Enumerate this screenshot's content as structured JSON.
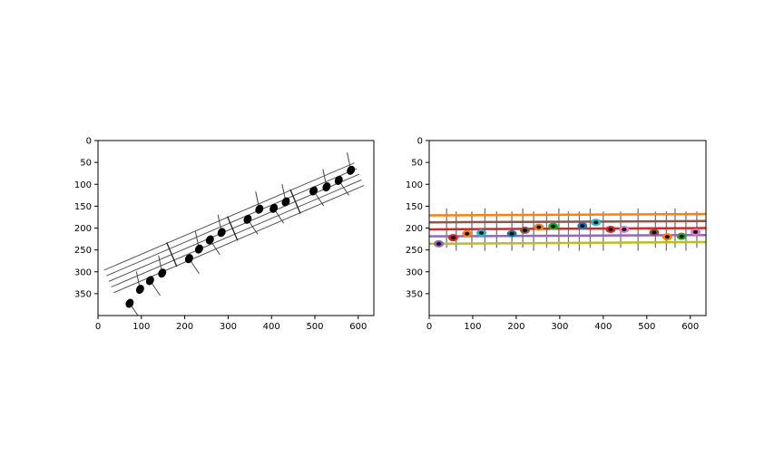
{
  "chart_data": [
    {
      "type": "scatter",
      "description_type": "image-plot",
      "title": "",
      "xlabel": "",
      "ylabel": "",
      "xlim": [
        0,
        636
      ],
      "ylim": [
        400,
        0
      ],
      "xticks": [
        "0",
        "100",
        "200",
        "300",
        "400",
        "500",
        "600"
      ],
      "yticks": [
        "0",
        "50",
        "100",
        "150",
        "200",
        "250",
        "300",
        "350"
      ],
      "staff": {
        "start": [
          25,
          322
        ],
        "end": [
          602,
          77
        ],
        "line_count": 5,
        "line_color": "#555555"
      },
      "barlines_x": [
        170,
        310,
        455
      ],
      "notes": [
        {
          "x": 73,
          "y": 372
        },
        {
          "x": 97,
          "y": 340
        },
        {
          "x": 120,
          "y": 320
        },
        {
          "x": 148,
          "y": 303
        },
        {
          "x": 210,
          "y": 270
        },
        {
          "x": 233,
          "y": 248
        },
        {
          "x": 258,
          "y": 227
        },
        {
          "x": 285,
          "y": 210
        },
        {
          "x": 345,
          "y": 180
        },
        {
          "x": 372,
          "y": 157
        },
        {
          "x": 405,
          "y": 155
        },
        {
          "x": 433,
          "y": 140
        },
        {
          "x": 497,
          "y": 115
        },
        {
          "x": 527,
          "y": 106
        },
        {
          "x": 555,
          "y": 91
        },
        {
          "x": 583,
          "y": 68
        }
      ]
    },
    {
      "type": "scatter",
      "description_type": "image-plot",
      "title": "",
      "xlabel": "",
      "ylabel": "",
      "xlim": [
        0,
        636
      ],
      "ylim": [
        400,
        0
      ],
      "xticks": [
        "0",
        "100",
        "200",
        "300",
        "400",
        "500",
        "600"
      ],
      "yticks": [
        "0",
        "50",
        "100",
        "150",
        "200",
        "250",
        "300",
        "350"
      ],
      "staff_lines": [
        {
          "y0": 171,
          "y1": 168,
          "color": "#ff7f0e"
        },
        {
          "y0": 187,
          "y1": 184,
          "color": "#8c564b"
        },
        {
          "y0": 203,
          "y1": 200,
          "color": "#d62728"
        },
        {
          "y0": 219,
          "y1": 216,
          "color": "#9467bd"
        },
        {
          "y0": 236,
          "y1": 232,
          "color": "#bcbd22"
        }
      ],
      "stems_x": [
        40,
        62,
        98,
        128,
        155,
        190,
        215,
        240,
        270,
        298,
        320,
        345,
        370,
        400,
        440,
        480,
        520,
        545,
        565,
        590,
        615
      ],
      "notes": [
        {
          "x": 22,
          "y": 236,
          "color": "#9467bd"
        },
        {
          "x": 55,
          "y": 222,
          "color": "#d62728"
        },
        {
          "x": 87,
          "y": 213,
          "color": "#ff7f0e"
        },
        {
          "x": 120,
          "y": 211,
          "color": "#17becf"
        },
        {
          "x": 190,
          "y": 213,
          "color": "#1f77b4"
        },
        {
          "x": 220,
          "y": 205,
          "color": "#8c564b"
        },
        {
          "x": 252,
          "y": 198,
          "color": "#ff7f0e"
        },
        {
          "x": 285,
          "y": 196,
          "color": "#2ca02c"
        },
        {
          "x": 352,
          "y": 195,
          "color": "#1f77b4"
        },
        {
          "x": 383,
          "y": 187,
          "color": "#17becf"
        },
        {
          "x": 417,
          "y": 203,
          "color": "#d62728"
        },
        {
          "x": 448,
          "y": 203,
          "color": "#e377c2"
        },
        {
          "x": 517,
          "y": 210,
          "color": "#8c564b"
        },
        {
          "x": 547,
          "y": 220,
          "color": "#ff7f0e"
        },
        {
          "x": 580,
          "y": 219,
          "color": "#2ca02c"
        },
        {
          "x": 612,
          "y": 209,
          "color": "#e377c2"
        }
      ]
    }
  ]
}
